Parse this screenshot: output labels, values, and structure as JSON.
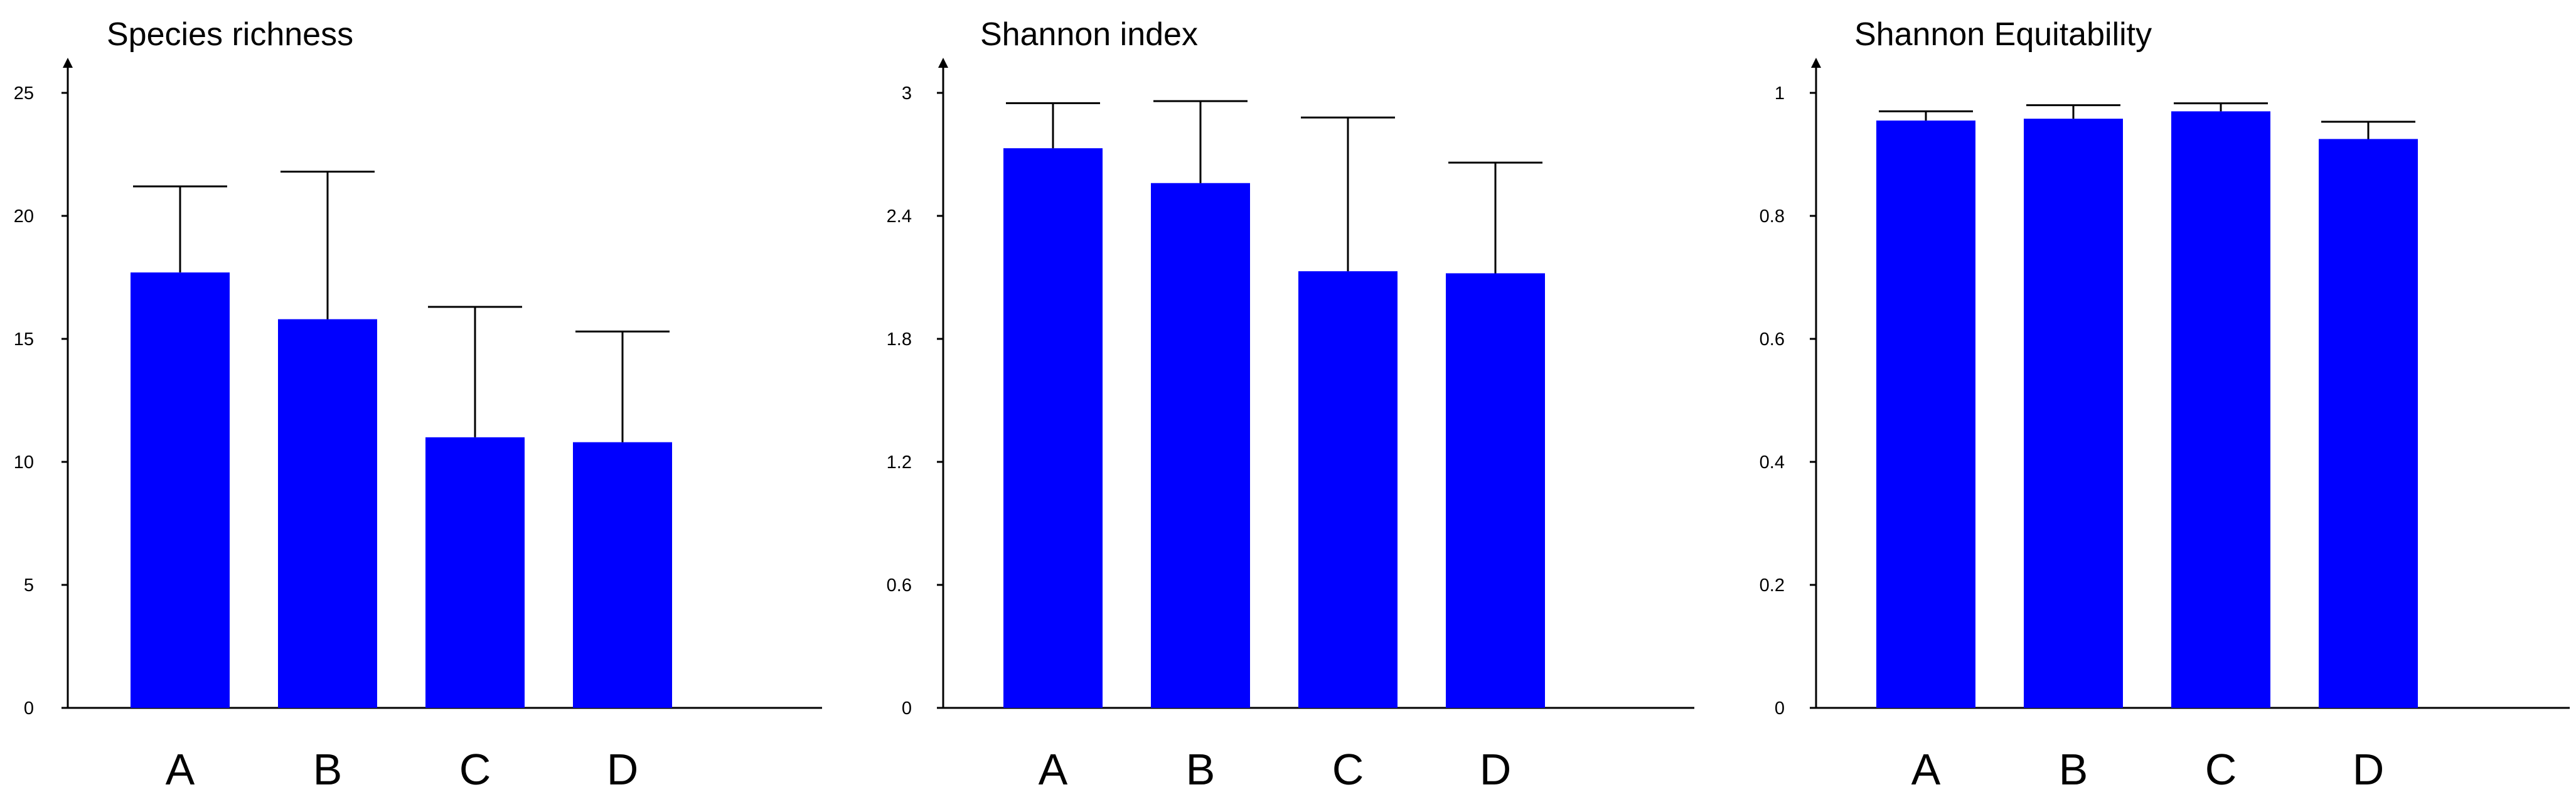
{
  "chart_data": [
    {
      "type": "bar",
      "title": "Species richness",
      "categories": [
        "A",
        "B",
        "C",
        "D"
      ],
      "values": [
        17.7,
        15.8,
        11.0,
        10.8
      ],
      "error_upper": [
        21.2,
        21.8,
        16.3,
        15.3
      ],
      "ylim": [
        0,
        25
      ],
      "yticks": [
        0,
        5,
        10,
        15,
        20,
        25
      ],
      "ytick_labels": [
        "0",
        "5",
        "10",
        "15",
        "20",
        "25"
      ],
      "bar_color": "#0000ff",
      "grid": false
    },
    {
      "type": "bar",
      "title": "Shannon index",
      "categories": [
        "A",
        "B",
        "C",
        "D"
      ],
      "values": [
        2.73,
        2.56,
        2.13,
        2.12
      ],
      "error_upper": [
        2.95,
        2.96,
        2.88,
        2.66
      ],
      "ylim": [
        0,
        3
      ],
      "yticks": [
        0,
        0.6,
        1.2,
        1.8,
        2.4,
        3
      ],
      "ytick_labels": [
        "0",
        "0.6",
        "1.2",
        "1.8",
        "2.4",
        "3"
      ],
      "bar_color": "#0000ff",
      "grid": false
    },
    {
      "type": "bar",
      "title": "Shannon Equitability",
      "categories": [
        "A",
        "B",
        "C",
        "D"
      ],
      "values": [
        0.955,
        0.958,
        0.97,
        0.925
      ],
      "error_upper": [
        0.97,
        0.98,
        0.983,
        0.953
      ],
      "ylim": [
        0,
        1
      ],
      "yticks": [
        0,
        0.2,
        0.4,
        0.6,
        0.8,
        1
      ],
      "ytick_labels": [
        "0",
        "0.2",
        "0.4",
        "0.6",
        "0.8",
        "1"
      ],
      "bar_color": "#0000ff",
      "grid": false
    }
  ]
}
